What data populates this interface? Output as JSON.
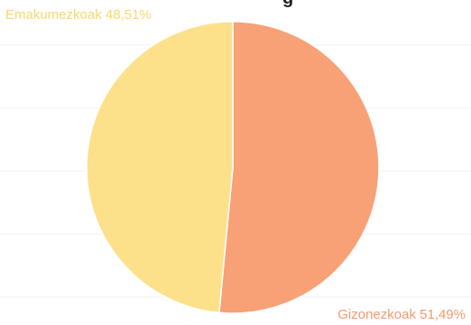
{
  "chart_data": {
    "type": "pie",
    "title_fragment": "g",
    "slices": [
      {
        "label": "Gizonezkoak",
        "value": 51.49,
        "value_text": "51,49%",
        "color": "#F8A076",
        "label_color": "#F39A6F"
      },
      {
        "label": "Emakumezkoak",
        "value": 48.51,
        "value_text": "48,51%",
        "color": "#FDE08A",
        "label_color": "#F7D86E"
      }
    ],
    "start_angle": "12 o'clock",
    "direction": "clockwise",
    "grid": true,
    "legend": "none"
  }
}
